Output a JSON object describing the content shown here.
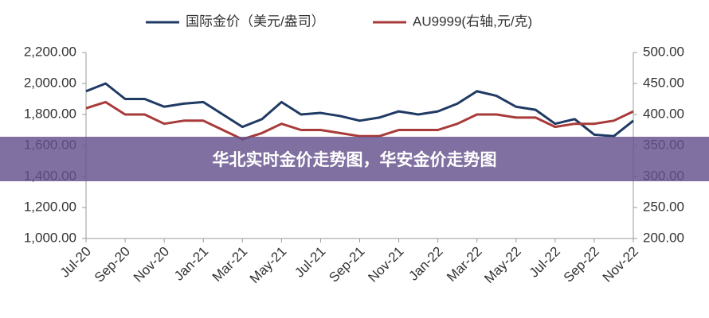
{
  "chart_data": {
    "type": "line",
    "categories": [
      "Jul-20",
      null,
      "Sep-20",
      null,
      "Nov-20",
      null,
      "Jan-21",
      null,
      "Mar-21",
      null,
      "May-21",
      null,
      "Jul-21",
      null,
      "Sep-21",
      null,
      "Nov-21",
      null,
      "Jan-22",
      null,
      "Mar-22",
      null,
      "May-22",
      null,
      "Jul-22",
      null,
      "Sep-22",
      null,
      "Nov-22"
    ],
    "series": [
      {
        "name": "国际金价（美元/盎司）",
        "color": "#1f3a63",
        "values": [
          1950,
          2000,
          1900,
          1900,
          1850,
          1870,
          1880,
          1800,
          1720,
          1770,
          1880,
          1800,
          1810,
          1790,
          1760,
          1780,
          1820,
          1800,
          1820,
          1870,
          1950,
          1920,
          1850,
          1830,
          1740,
          1770,
          1670,
          1660,
          1760
        ]
      },
      {
        "name": "AU9999(右轴,元/克)",
        "color": "#a83a3a",
        "axis": "y2",
        "values": [
          410,
          420,
          400,
          400,
          385,
          390,
          390,
          375,
          360,
          370,
          385,
          375,
          375,
          370,
          365,
          365,
          375,
          375,
          375,
          385,
          400,
          400,
          395,
          395,
          380,
          385,
          385,
          390,
          405
        ]
      }
    ],
    "ylim": [
      1000,
      2200
    ],
    "yticks": [
      {
        "value": 1000,
        "label": "1,000.00"
      },
      {
        "value": 1200,
        "label": "1,200.00"
      },
      {
        "value": 1400,
        "label": "1,400.00"
      },
      {
        "value": 1600,
        "label": "1,600.00"
      },
      {
        "value": 1800,
        "label": "1,800.00"
      },
      {
        "value": 2000,
        "label": "2,000.00"
      },
      {
        "value": 2200,
        "label": "2,200.00"
      }
    ],
    "y2lim": [
      200,
      500
    ],
    "y2ticks": [
      {
        "value": 200,
        "label": "200.00"
      },
      {
        "value": 250,
        "label": "250.00"
      },
      {
        "value": 300,
        "label": "300.00"
      },
      {
        "value": 350,
        "label": "350.00"
      },
      {
        "value": 400,
        "label": "400.00"
      },
      {
        "value": 450,
        "label": "450.00"
      },
      {
        "value": 500,
        "label": "500.00"
      }
    ],
    "legend": "top"
  },
  "banner_text": "华北实时金价走势图，华安金价走势图"
}
